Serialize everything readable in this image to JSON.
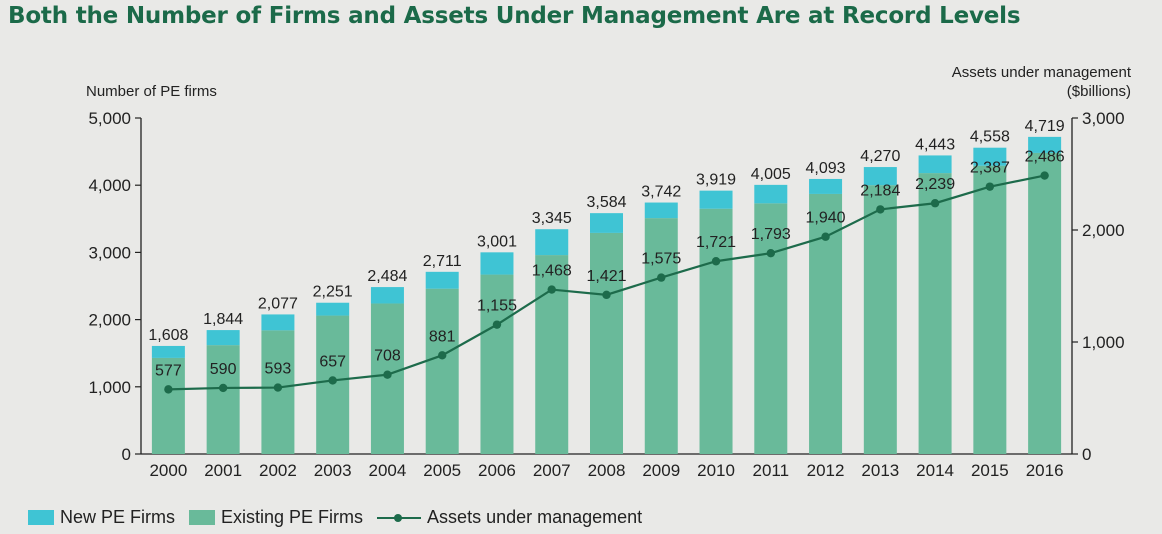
{
  "title": "Both the Number of Firms and Assets Under Management Are at Record Levels",
  "colors": {
    "title": "#1b6a49",
    "new_firms": "#3fc4d4",
    "existing_firms": "#69ba9a",
    "aum": "#1d6b4b"
  },
  "legend": {
    "new": "New PE Firms",
    "existing": "Existing PE Firms",
    "aum": "Assets under management"
  },
  "chart_data": {
    "type": "bar",
    "title": "Both the Number of Firms and Assets Under Management Are at Record Levels",
    "ylabel": "Number of PE firms",
    "y2label_line1": "Assets under management",
    "y2label_line2": "($billions)",
    "ylim": [
      0,
      5000
    ],
    "y2lim": [
      0,
      3000
    ],
    "yticks": [
      "0",
      "1,000",
      "2,000",
      "3,000",
      "4,000",
      "5,000"
    ],
    "y2ticks": [
      "0",
      "1,000",
      "2,000",
      "3,000"
    ],
    "categories": [
      "2000",
      "2001",
      "2002",
      "2003",
      "2004",
      "2005",
      "2006",
      "2007",
      "2008",
      "2009",
      "2010",
      "2011",
      "2012",
      "2013",
      "2014",
      "2015",
      "2016"
    ],
    "series": [
      {
        "name": "Existing PE Firms",
        "kind": "stacked-bar",
        "values": [
          1430,
          1620,
          1840,
          2060,
          2240,
          2460,
          2670,
          2960,
          3290,
          3510,
          3650,
          3730,
          3870,
          4000,
          4180,
          4290,
          4480
        ]
      },
      {
        "name": "New PE Firms",
        "kind": "stacked-bar",
        "values": [
          178,
          224,
          237,
          191,
          244,
          251,
          331,
          385,
          294,
          232,
          269,
          275,
          223,
          270,
          263,
          268,
          239
        ]
      },
      {
        "name": "Assets under management",
        "kind": "line",
        "axis": "right",
        "values": [
          577,
          590,
          593,
          657,
          708,
          881,
          1155,
          1468,
          1421,
          1575,
          1721,
          1793,
          1940,
          2184,
          2239,
          2387,
          2486
        ]
      }
    ],
    "bar_total_labels": [
      "1,608",
      "1,844",
      "2,077",
      "2,251",
      "2,484",
      "2,711",
      "3,001",
      "3,345",
      "3,584",
      "3,742",
      "3,919",
      "4,005",
      "4,093",
      "4,270",
      "4,443",
      "4,558",
      "4,719"
    ],
    "line_labels": [
      "577",
      "590",
      "593",
      "657",
      "708",
      "881",
      "1,155",
      "1,468",
      "1,421",
      "1,575",
      "1,721",
      "1,793",
      "1,940",
      "2,184",
      "2,239",
      "2,387",
      "2,486"
    ],
    "grid": false,
    "legend_position": "bottom-left"
  }
}
